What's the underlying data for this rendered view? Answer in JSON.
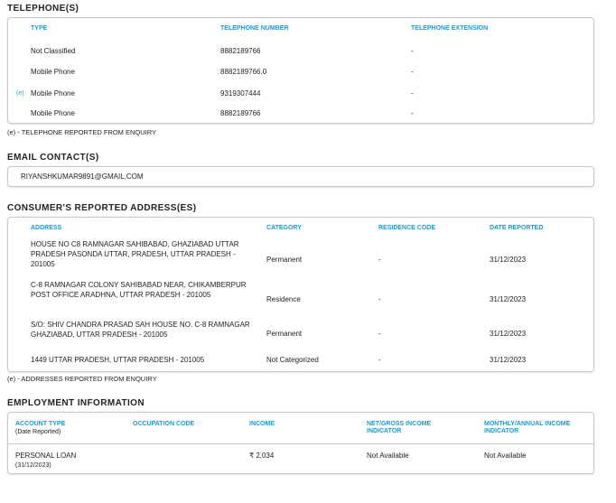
{
  "telephones": {
    "title": "TELEPHONE(S)",
    "headers": [
      "TYPE",
      "TELEPHONE NUMBER",
      "TELEPHONE EXTENSION"
    ],
    "rows": [
      {
        "marker": "",
        "type": "Not Classified",
        "number": "8882189766",
        "extension": "-"
      },
      {
        "marker": "",
        "type": "Mobile Phone",
        "number": "8882189766.0",
        "extension": "-"
      },
      {
        "marker": "(e)",
        "type": "Mobile Phone",
        "number": "9319307444",
        "extension": "-"
      },
      {
        "marker": "",
        "type": "Mobile Phone",
        "number": "8882189766",
        "extension": "-"
      }
    ],
    "footnote": "(e) - TELEPHONE REPORTED FROM ENQUIRY"
  },
  "email": {
    "title": "EMAIL CONTACT(S)",
    "value": "RIYANSHKUMAR9891@GMAIL.COM"
  },
  "addresses": {
    "title": "CONSUMER'S REPORTED ADDRESS(ES)",
    "headers": [
      "ADDRESS",
      "CATEGORY",
      "RESIDENCE CODE",
      "DATE REPORTED"
    ],
    "rows": [
      {
        "address": "HOUSE NO C8 RAMNAGAR SAHIBABAD, GHAZIABAD UTTAR PRADESH PASONDA UTTAR, PRADESH, UTTAR PRADESH - 201005",
        "category": "Permanent",
        "residence_code": "-",
        "date": "31/12/2023"
      },
      {
        "address": "C-8 RAMNAGAR COLONY SAHIBABAD NEAR, CHIKAMBERPUR POST OFFICE ARADHNA, UTTAR PRADESH - 201005",
        "category": "Residence",
        "residence_code": "-",
        "date": "31/12/2023"
      },
      {
        "address": "S/O: SHIV CHANDRA PRASAD SAH HOUSE NO. C-8 RAMNAGAR GHAZIABAD, UTTAR PRADESH - 201005",
        "category": "Permanent",
        "residence_code": "-",
        "date": "31/12/2023"
      },
      {
        "address": "1449 UTTAR PRADESH, UTTAR PRADESH - 201005",
        "category": "Not Categorized",
        "residence_code": "-",
        "date": "31/12/2023"
      }
    ],
    "footnote": "(e) - ADDRESSES REPORTED FROM ENQUIRY"
  },
  "employment": {
    "title": "EMPLOYMENT INFORMATION",
    "headers": [
      "ACCOUNT TYPE",
      "OCCUPATION CODE",
      "INCOME",
      "NET/GROSS INCOME INDICATOR",
      "MONTHLY/ANNUAL INCOME INDICATOR"
    ],
    "header_sub": "(Date Reported)",
    "row": {
      "account_type": "PERSONAL LOAN",
      "date": "(31/12/2023)",
      "occupation_code": "",
      "income": "₹ 2,034",
      "net_gross": "Not Available",
      "monthly_annual": "Not Available"
    }
  },
  "colors": {
    "header_accent": "#1a9bd0"
  }
}
